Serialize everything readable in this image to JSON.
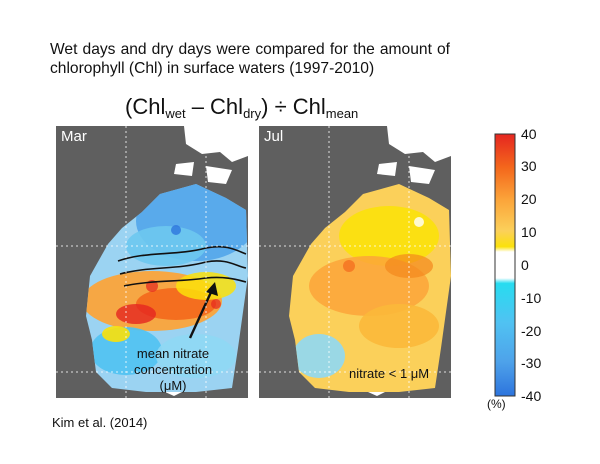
{
  "intro_text": "Wet days and dry days were compared for the amount of chlorophyll (Chl) in surface waters (1997-2010)",
  "formula": {
    "open": "(Chl",
    "wet": "wet",
    "minus": " – Chl",
    "dry": "dry",
    "divide": ") ÷ Chl",
    "mean": "mean"
  },
  "panels": [
    {
      "month": "Mar",
      "annotation_lines": [
        "mean nitrate",
        "concentration",
        "(μM)"
      ]
    },
    {
      "month": "Jul",
      "annotation": "nitrate < 1 μM"
    }
  ],
  "citation": "Kim et al. (2014)",
  "colorbar": {
    "ticks": [
      "40",
      "30",
      "20",
      "10",
      "0",
      "-10",
      "-20",
      "-30",
      "-40"
    ],
    "unit": "(%)",
    "colors": [
      "#e52620",
      "#f4681c",
      "#fba43a",
      "#fbe10a",
      "#ffffff",
      "#27dcf0",
      "#50c2f2",
      "#4ea2ea",
      "#2d74dd"
    ]
  },
  "colors": {
    "land": "#5f5f5f",
    "ocean_dark": "#3a3a3a",
    "arctic": "#ffffff"
  }
}
